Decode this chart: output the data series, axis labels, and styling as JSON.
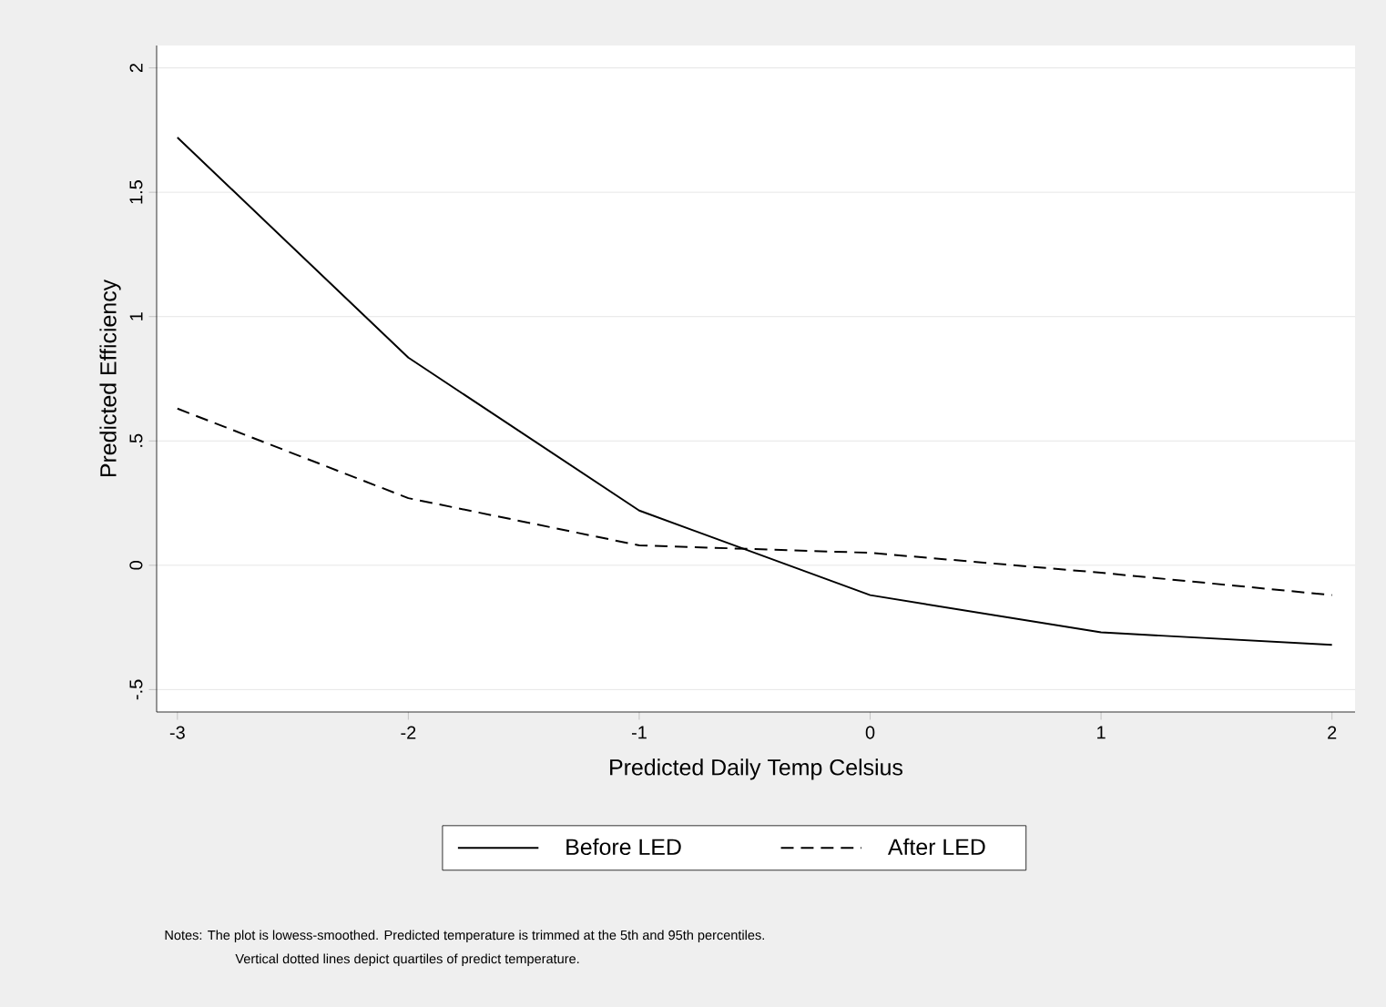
{
  "chart_data": {
    "type": "line",
    "xlabel": "Predicted Daily Temp Celsius",
    "ylabel": "Predicted Efficiency",
    "x": [
      -3,
      -2,
      -1,
      0,
      1,
      2
    ],
    "series": [
      {
        "name": "Before LED",
        "color": "#000000",
        "line_style": "solid",
        "values": [
          1.72,
          0.835,
          0.22,
          -0.12,
          -0.27,
          -0.32
        ]
      },
      {
        "name": "After LED",
        "color": "#000000",
        "line_style": "dashed",
        "values": [
          0.63,
          0.27,
          0.08,
          0.05,
          -0.03,
          -0.12
        ]
      }
    ],
    "xlim": [
      -3.09,
      2.1
    ],
    "ylim": [
      -0.59,
      2.09
    ],
    "xticks": [
      -3,
      -2,
      -1,
      0,
      1,
      2
    ],
    "yticks": [
      {
        "value": -0.5,
        "label": "-.5"
      },
      0,
      {
        "value": 0.5,
        "label": ".5"
      },
      1,
      1.5,
      2
    ],
    "grid": "y",
    "legend": "bottom",
    "marker": "none",
    "annotations": [
      "Notes: The plot is lowess-smoothed. Predicted temperature is trimmed at the 5th and 95th percentiles.",
      "Vertical dotted lines depict quartiles of predict temperature."
    ]
  }
}
